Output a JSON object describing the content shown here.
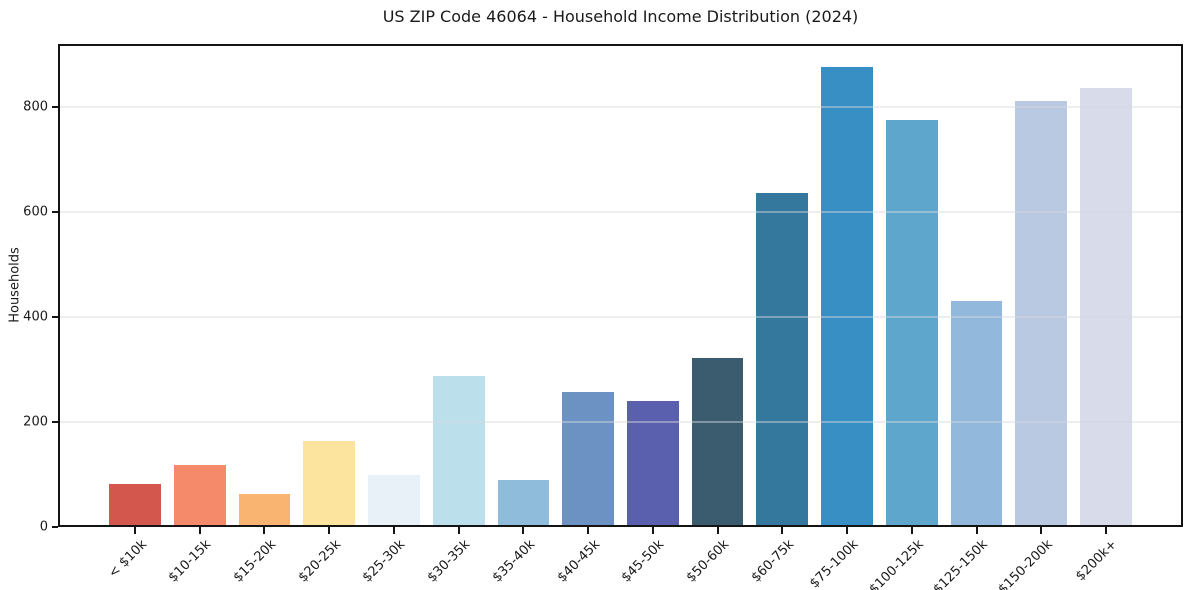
{
  "chart_data": {
    "type": "bar",
    "title": "US ZIP Code 46064 - Household Income Distribution (2024)",
    "xlabel": "",
    "ylabel": "Households",
    "categories": [
      "< $10k",
      "$10-15k",
      "$15-20k",
      "$20-25k",
      "$25-30k",
      "$30-35k",
      "$35-40k",
      "$40-45k",
      "$45-50k",
      "$50-60k",
      "$60-75k",
      "$75-100k",
      "$100-125k",
      "$125-150k",
      "$150-200k",
      "$200k+"
    ],
    "values": [
      82,
      118,
      62,
      164,
      100,
      288,
      90,
      258,
      240,
      322,
      636,
      876,
      775,
      430,
      811,
      836
    ],
    "bar_colors": [
      "#d4574e",
      "#f48a6a",
      "#fab471",
      "#fde49e",
      "#e7f1f7",
      "#bcdfec",
      "#8fbcdb",
      "#6c92c4",
      "#5a5fae",
      "#3b5b6f",
      "#35789e",
      "#378fc3",
      "#5fa6cc",
      "#92b8dc",
      "#b9c9e2",
      "#d8dbe9"
    ],
    "yticks": [
      0,
      200,
      400,
      600,
      800
    ],
    "ylim": [
      0,
      920
    ],
    "grid": "horizontal-over-bars",
    "legend": "none",
    "background_color": "#ffffff",
    "axis_color": "#141414",
    "gridline_color": "#ececec",
    "text_color": "#1a1a1a"
  }
}
